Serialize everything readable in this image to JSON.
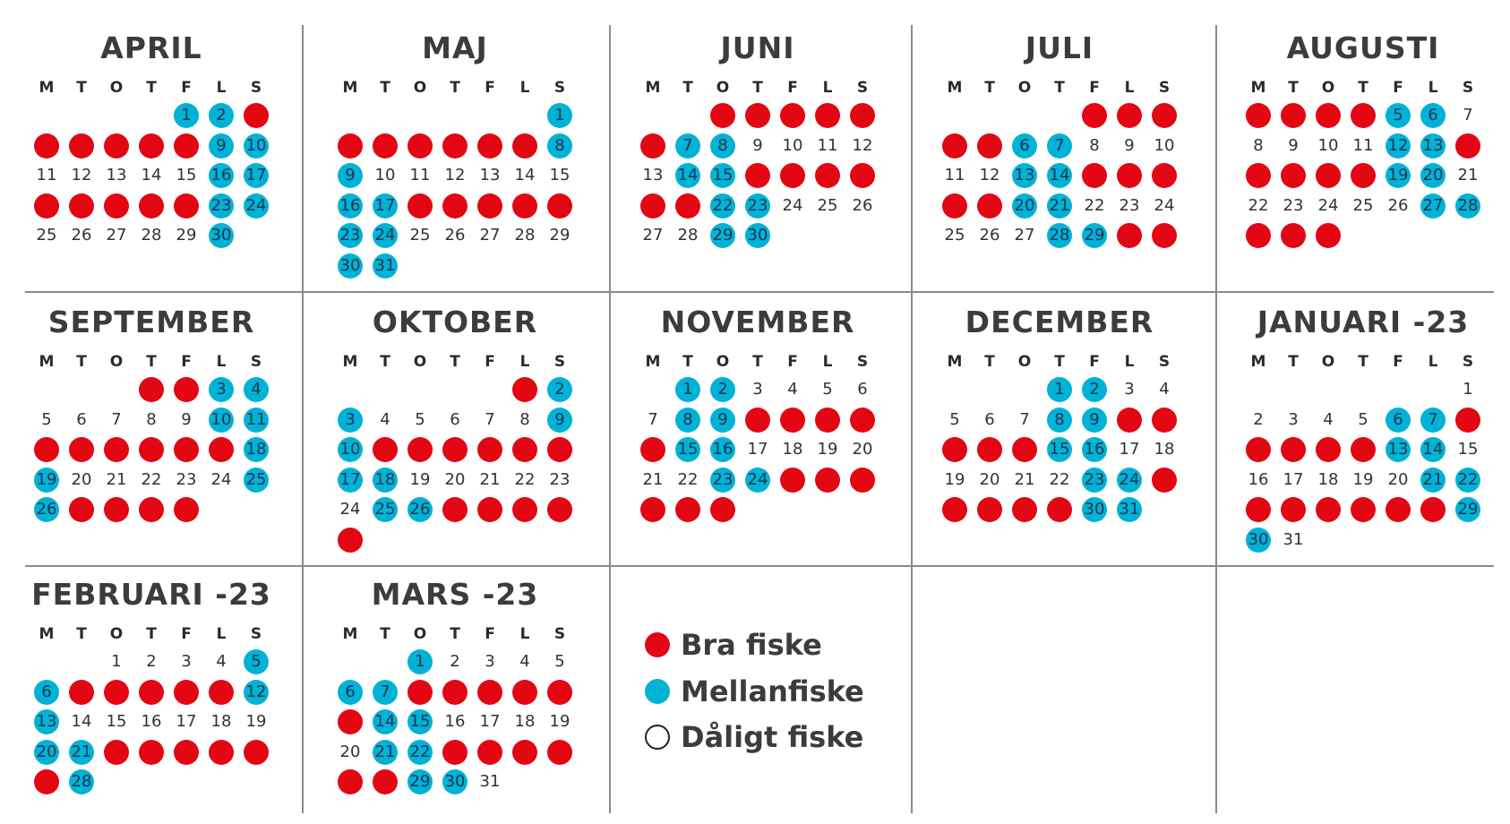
{
  "weekdays": [
    "M",
    "T",
    "O",
    "T",
    "F",
    "L",
    "S"
  ],
  "legend": [
    {
      "label": "Bra fiske",
      "type": "bra"
    },
    {
      "label": "Mellanfiske",
      "type": "mellan"
    },
    {
      "label": "Dåligt fiske",
      "type": "daligt"
    }
  ],
  "colors": {
    "bra": "#e30613",
    "mellan": "#00b2d6",
    "daligt": "#ffffff",
    "grid": "#8a8a8a",
    "text": "#333333"
  },
  "months": [
    {
      "name": "APRIL",
      "offset": 4,
      "days": 30,
      "bra": [
        3,
        4,
        5,
        6,
        7,
        8,
        18,
        19,
        20,
        21,
        22
      ],
      "mellan": [
        1,
        2,
        9,
        10,
        16,
        17,
        23,
        24,
        30
      ]
    },
    {
      "name": "MAJ",
      "offset": 6,
      "days": 31,
      "bra": [
        2,
        3,
        4,
        5,
        6,
        7,
        18,
        19,
        20,
        21,
        22
      ],
      "mellan": [
        1,
        8,
        9,
        16,
        17,
        23,
        24,
        30,
        31
      ]
    },
    {
      "name": "JUNI",
      "offset": 2,
      "days": 30,
      "bra": [
        1,
        2,
        3,
        4,
        5,
        6,
        16,
        17,
        18,
        19,
        20,
        21
      ],
      "mellan": [
        7,
        8,
        14,
        15,
        22,
        23,
        29,
        30
      ]
    },
    {
      "name": "JULI",
      "offset": 4,
      "days": 31,
      "bra": [
        1,
        2,
        3,
        4,
        5,
        15,
        16,
        17,
        18,
        19,
        30,
        31
      ],
      "mellan": [
        6,
        7,
        13,
        14,
        20,
        21,
        28,
        29
      ]
    },
    {
      "name": "AUGUSTI",
      "offset": 0,
      "days": 31,
      "bra": [
        1,
        2,
        3,
        4,
        14,
        15,
        16,
        17,
        18,
        29,
        30,
        31
      ],
      "mellan": [
        5,
        6,
        12,
        13,
        19,
        20,
        27,
        28
      ]
    },
    {
      "name": "SEPTEMBER",
      "offset": 3,
      "days": 30,
      "bra": [
        1,
        2,
        12,
        13,
        14,
        15,
        16,
        17,
        27,
        28,
        29,
        30
      ],
      "mellan": [
        3,
        4,
        10,
        11,
        18,
        19,
        25,
        26
      ]
    },
    {
      "name": "OKTOBER",
      "offset": 5,
      "days": 31,
      "bra": [
        1,
        11,
        12,
        13,
        14,
        15,
        16,
        27,
        28,
        29,
        30,
        31
      ],
      "mellan": [
        2,
        3,
        9,
        10,
        17,
        18,
        25,
        26
      ]
    },
    {
      "name": "NOVEMBER",
      "offset": 1,
      "days": 30,
      "bra": [
        10,
        11,
        12,
        13,
        14,
        25,
        26,
        27,
        28,
        29,
        30
      ],
      "mellan": [
        1,
        2,
        8,
        9,
        15,
        16,
        23,
        24
      ]
    },
    {
      "name": "DECEMBER",
      "offset": 3,
      "days": 31,
      "bra": [
        10,
        11,
        12,
        13,
        14,
        25,
        26,
        27,
        28,
        29
      ],
      "mellan": [
        1,
        2,
        8,
        9,
        15,
        16,
        23,
        24,
        30,
        31
      ]
    },
    {
      "name": "JANUARI -23",
      "offset": 6,
      "days": 31,
      "bra": [
        8,
        9,
        10,
        11,
        12,
        23,
        24,
        25,
        26,
        27,
        28
      ],
      "mellan": [
        6,
        7,
        13,
        14,
        21,
        22,
        29,
        30
      ]
    },
    {
      "name": "FEBRUARI -23",
      "offset": 2,
      "days": 28,
      "bra": [
        7,
        8,
        9,
        10,
        11,
        22,
        23,
        24,
        25,
        26,
        27
      ],
      "mellan": [
        5,
        6,
        12,
        13,
        20,
        21,
        28
      ]
    },
    {
      "name": "MARS -23",
      "offset": 2,
      "days": 31,
      "bra": [
        8,
        9,
        10,
        11,
        12,
        13,
        23,
        24,
        25,
        26,
        27,
        28
      ],
      "mellan": [
        1,
        6,
        7,
        14,
        15,
        21,
        22,
        29,
        30
      ]
    }
  ]
}
